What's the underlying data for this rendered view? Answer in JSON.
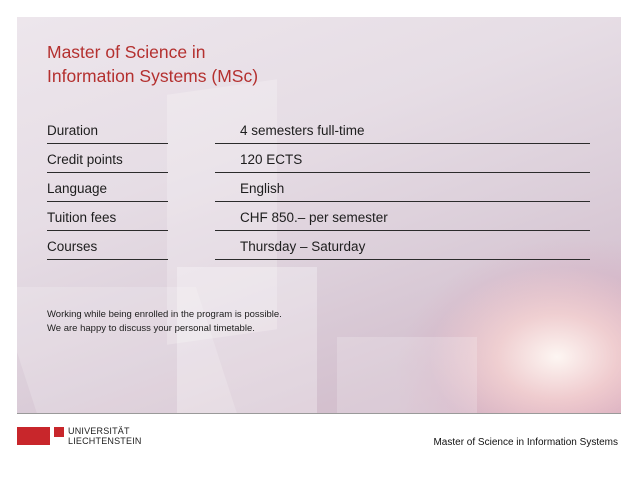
{
  "title": {
    "line1": "Master of Science in",
    "line2": "Information Systems (MSc)"
  },
  "rows": [
    {
      "label": "Duration",
      "value": "4 semesters full-time"
    },
    {
      "label": "Credit points",
      "value": "120 ECTS"
    },
    {
      "label": "Language",
      "value": "English"
    },
    {
      "label": "Tuition fees",
      "value": "CHF 850.– per semester"
    },
    {
      "label": "Courses",
      "value": "Thursday – Saturday"
    }
  ],
  "note": {
    "line1": "Working while being enrolled in the program is possible.",
    "line2": "We are happy to discuss your personal timetable."
  },
  "logo": {
    "line1": "UNIVERSITÄT",
    "line2": "LIECHTENSTEIN"
  },
  "footer": {
    "text": "Master of Science in Information Systems"
  },
  "colors": {
    "accent": "#b4302f",
    "logo_red": "#c8262b"
  }
}
